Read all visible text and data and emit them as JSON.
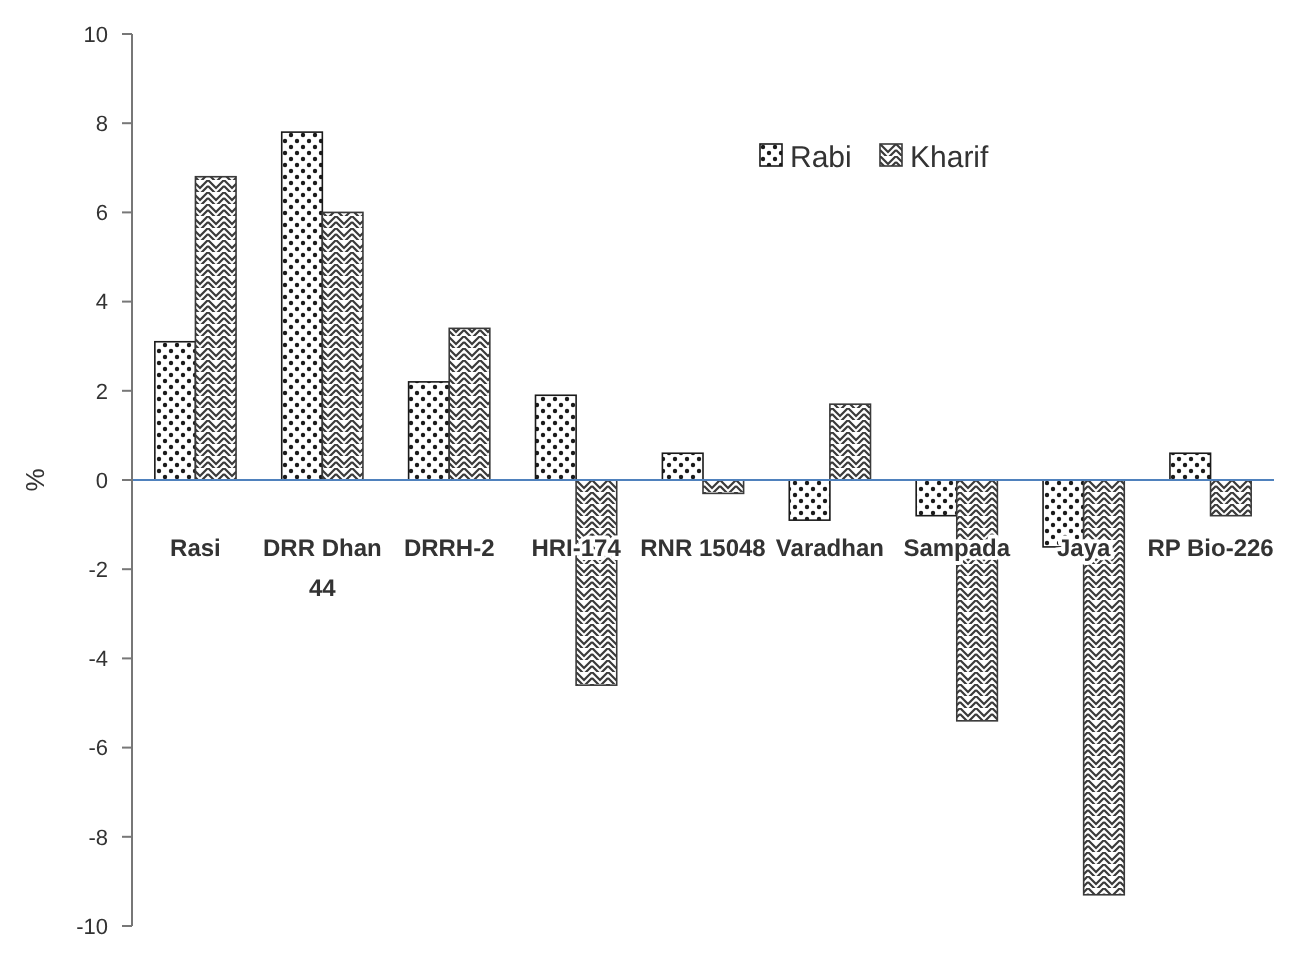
{
  "chart_data": {
    "type": "bar",
    "ylabel": "%",
    "categories": [
      "Rasi",
      "DRR Dhan 44",
      "DRRH-2",
      "HRI-174",
      "RNR 15048",
      "Varadhan",
      "Sampada",
      "Jaya",
      "RP Bio-226"
    ],
    "series": [
      {
        "name": "Rabi",
        "color": "#1a1a1a",
        "values": [
          3.1,
          7.8,
          2.2,
          1.9,
          0.6,
          -0.9,
          -0.8,
          -1.5,
          0.6
        ]
      },
      {
        "name": "Kharif",
        "color": "#3a3a3a",
        "values": [
          6.8,
          6.0,
          3.4,
          -4.6,
          -0.3,
          1.7,
          -5.4,
          -9.3,
          -0.8
        ]
      }
    ],
    "ylim": [
      -10,
      10
    ],
    "yticks": [
      -10,
      -8,
      -6,
      -4,
      -2,
      0,
      2,
      4,
      6,
      8,
      10
    ],
    "legend": "top right"
  }
}
